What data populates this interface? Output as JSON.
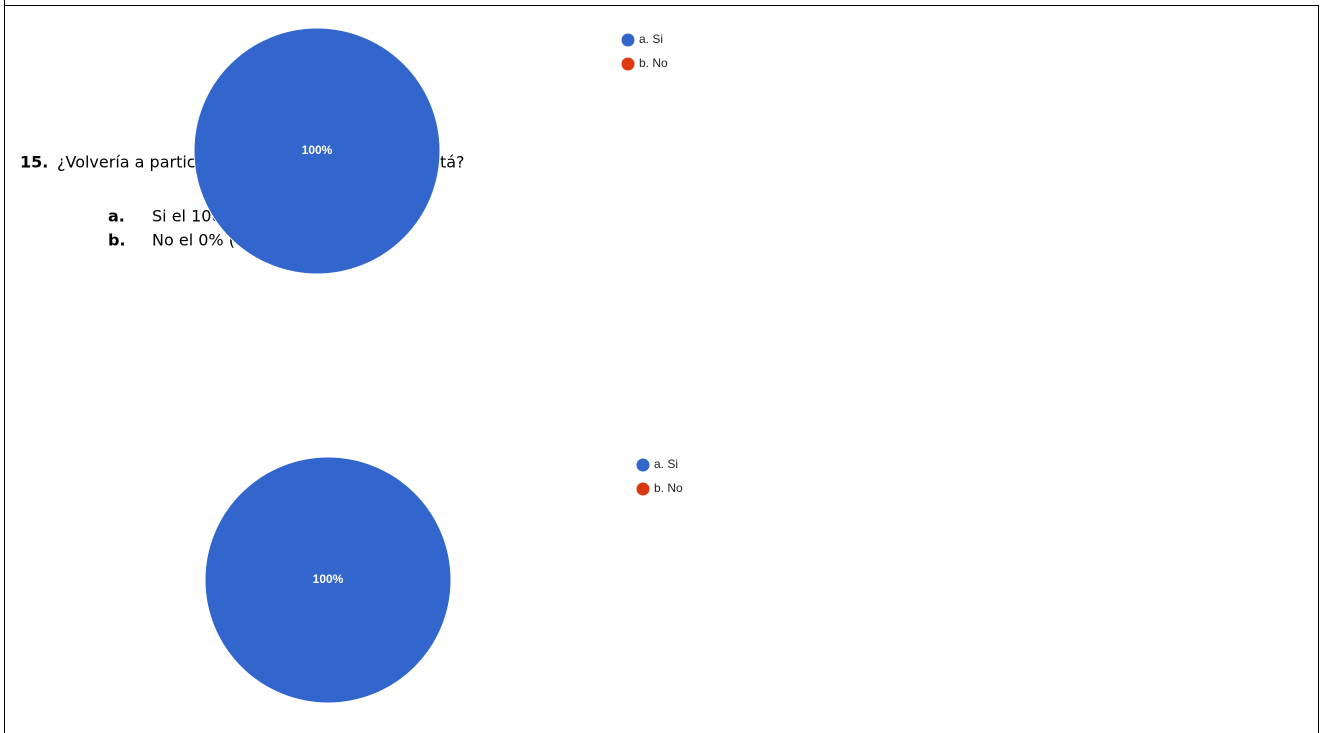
{
  "chart_data": [
    {
      "type": "pie",
      "categories": [
        "a. Si",
        "b. No"
      ],
      "values": [
        100,
        0
      ],
      "value_labels": [
        "100%",
        null
      ],
      "colors": [
        "#3366cc",
        "#dc3912"
      ],
      "legend": "right"
    },
    {
      "type": "pie",
      "categories": [
        "a. Si",
        "b. No"
      ],
      "values": [
        100,
        0
      ],
      "value_labels": [
        "100%",
        null
      ],
      "colors": [
        "#3366cc",
        "#dc3912"
      ],
      "legend": "right"
    }
  ],
  "question": {
    "number": "15.",
    "text": "¿Volvería a participar en otra actividad cómo está?",
    "options": [
      {
        "letter": "a.",
        "text": "Si el 100% (39)"
      },
      {
        "letter": "b.",
        "text": "No el 0% (0)"
      }
    ]
  }
}
